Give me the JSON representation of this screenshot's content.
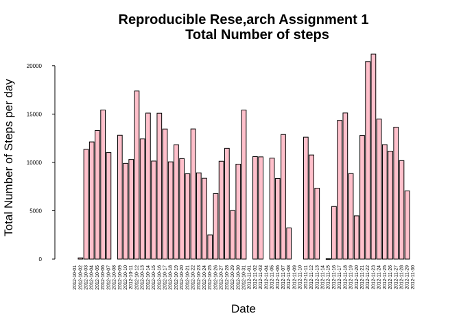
{
  "chart_data": {
    "type": "bar",
    "title": [
      "Reproducible Rese,arch Assignment 1",
      "Total Number of steps"
    ],
    "xlabel": "Date",
    "ylabel": "Total Number of Steps per day",
    "ylim": [
      0,
      21194
    ],
    "yticks": [
      0,
      5000,
      10000,
      15000,
      20000
    ],
    "bar_color": "#FFC0CB",
    "border_color": "#000000",
    "grid": false,
    "legend": "none",
    "categories": [
      "2012-10-01",
      "2012-10-02",
      "2012-10-03",
      "2012-10-04",
      "2012-10-05",
      "2012-10-06",
      "2012-10-07",
      "2012-10-08",
      "2012-10-09",
      "2012-10-10",
      "2012-10-11",
      "2012-10-12",
      "2012-10-13",
      "2012-10-14",
      "2012-10-15",
      "2012-10-16",
      "2012-10-17",
      "2012-10-18",
      "2012-10-19",
      "2012-10-20",
      "2012-10-21",
      "2012-10-22",
      "2012-10-23",
      "2012-10-24",
      "2012-10-25",
      "2012-10-26",
      "2012-10-27",
      "2012-10-28",
      "2012-10-29",
      "2012-10-30",
      "2012-10-31",
      "2012-11-01",
      "2012-11-02",
      "2012-11-03",
      "2012-11-04",
      "2012-11-05",
      "2012-11-06",
      "2012-11-07",
      "2012-11-08",
      "2012-11-09",
      "2012-11-10",
      "2012-11-11",
      "2012-11-12",
      "2012-11-13",
      "2012-11-14",
      "2012-11-15",
      "2012-11-16",
      "2012-11-17",
      "2012-11-18",
      "2012-11-19",
      "2012-11-20",
      "2012-11-21",
      "2012-11-22",
      "2012-11-23",
      "2012-11-24",
      "2012-11-25",
      "2012-11-26",
      "2012-11-27",
      "2012-11-28",
      "2012-11-29",
      "2012-11-30"
    ],
    "values": [
      0,
      126,
      11352,
      12116,
      13294,
      15420,
      11015,
      0,
      12811,
      9900,
      10304,
      17382,
      12426,
      15098,
      10139,
      15084,
      13452,
      10056,
      11829,
      10395,
      8821,
      13460,
      8918,
      8355,
      2492,
      6778,
      10119,
      11458,
      5018,
      9819,
      15414,
      0,
      10600,
      10571,
      0,
      10439,
      8334,
      12883,
      3219,
      0,
      0,
      12608,
      10765,
      7336,
      0,
      41,
      5441,
      14339,
      15110,
      8841,
      4472,
      12787,
      20427,
      21194,
      14478,
      11834,
      11162,
      13646,
      10183,
      7047,
      0
    ]
  }
}
